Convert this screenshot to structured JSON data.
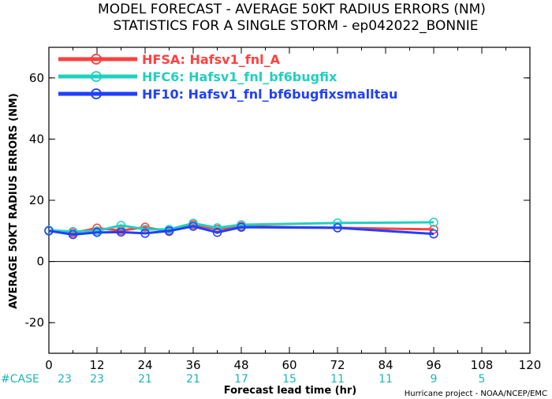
{
  "chart_data": {
    "type": "line",
    "title_line1": "MODEL FORECAST - AVERAGE 50KT RADIUS ERRORS (NM)",
    "title_line2": "STATISTICS FOR A SINGLE STORM - ep042022_BONNIE",
    "xlabel": "Forecast lead time (hr)",
    "ylabel": "AVERAGE 50KT RADIUS ERRORS (NM)",
    "xlim": [
      0,
      120
    ],
    "ylim": [
      -30,
      70
    ],
    "xticks": [
      0,
      12,
      24,
      36,
      48,
      60,
      72,
      84,
      96,
      108,
      120
    ],
    "yticks": [
      -20,
      0,
      20,
      40,
      60
    ],
    "zero_line": true,
    "legend_position": "top-left",
    "series": [
      {
        "name": "HFSA: Hafsv1_fnl_A",
        "color": "#ff4040",
        "x": [
          0,
          6,
          12,
          18,
          24,
          30,
          36,
          42,
          48,
          72,
          96
        ],
        "y": [
          10.2,
          9.3,
          10.9,
          10.1,
          11.2,
          9.8,
          12.0,
          10.5,
          11.5,
          11.0,
          10.5
        ]
      },
      {
        "name": "HFC6: Hafsv1_fnl_bf6bugfix",
        "color": "#20d0c0",
        "x": [
          0,
          6,
          12,
          18,
          24,
          30,
          36,
          42,
          48,
          72,
          96
        ],
        "y": [
          10.2,
          9.8,
          10.0,
          11.8,
          10.5,
          10.5,
          12.5,
          11.0,
          12.0,
          12.6,
          12.8
        ]
      },
      {
        "name": "HF10: Hafsv1_fnl_bf6bugfixsmalltau",
        "color": "#2040ff",
        "x": [
          0,
          6,
          12,
          18,
          24,
          30,
          36,
          42,
          48,
          72,
          96
        ],
        "y": [
          10.0,
          8.8,
          9.5,
          9.6,
          9.2,
          10.0,
          11.5,
          9.5,
          11.2,
          11.0,
          9.0
        ]
      }
    ],
    "case_label": "#CASE",
    "case_counts": [
      {
        "x": 0,
        "n": "23"
      },
      {
        "x": 12,
        "n": "23"
      },
      {
        "x": 24,
        "n": "21"
      },
      {
        "x": 36,
        "n": "21"
      },
      {
        "x": 48,
        "n": "17"
      },
      {
        "x": 60,
        "n": "15"
      },
      {
        "x": 72,
        "n": "11"
      },
      {
        "x": 84,
        "n": "11"
      },
      {
        "x": 96,
        "n": "9"
      },
      {
        "x": 108,
        "n": "5"
      }
    ],
    "case_color": "#1fb5b5",
    "credit": "Hurricane project - NOAA/NCEP/EMC"
  }
}
